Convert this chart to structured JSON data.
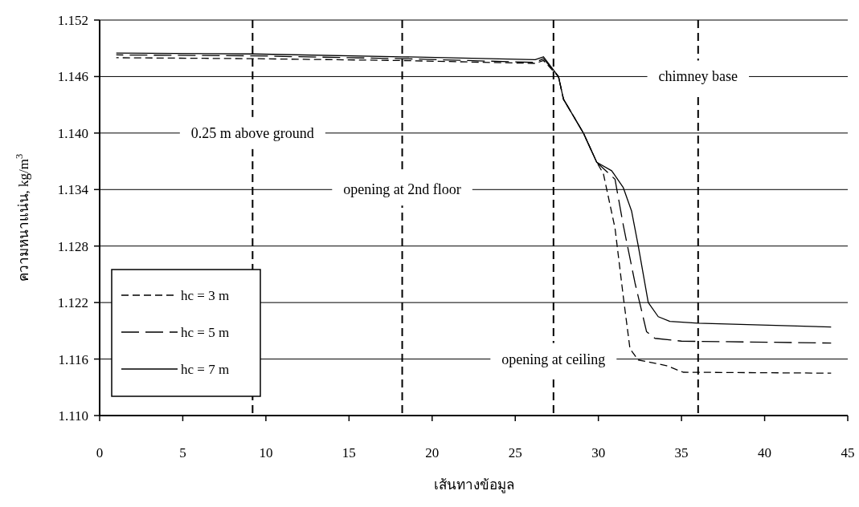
{
  "chart_data": {
    "type": "line",
    "xlabel": "เส้นทางข้อมูล",
    "ylabel": "ความหนาแน่น, kg/m$^{3}$",
    "xlim": [
      0,
      45
    ],
    "xticks": [
      0,
      5,
      10,
      15,
      20,
      25,
      30,
      35,
      40,
      45
    ],
    "ylim": [
      1.11,
      1.152
    ],
    "yticks": [
      {
        "value": 1.11,
        "label": "1.110"
      },
      {
        "value": 1.116,
        "label": "1.116"
      },
      {
        "value": 1.122,
        "label": "1.122"
      },
      {
        "value": 1.128,
        "label": "1.128"
      },
      {
        "value": 1.134,
        "label": "1.134"
      },
      {
        "value": 1.14,
        "label": "1.140"
      },
      {
        "value": 1.146,
        "label": "1.146"
      },
      {
        "value": 1.152,
        "label": "1.152"
      }
    ],
    "grid": "y",
    "legend": "bottom left",
    "series": [
      {
        "name": "hc = 3 m",
        "color": "#000000",
        "line_style": "dashed",
        "x": [
          1,
          9.2,
          18.2,
          26.2,
          26.7,
          27.6,
          27.9,
          29.1,
          29.9,
          30.3,
          31.0,
          31.5,
          31.9,
          32.4,
          34.1,
          35.1,
          44
        ],
        "values": [
          1.148,
          1.1479,
          1.1477,
          1.1474,
          1.1477,
          1.146,
          1.1436,
          1.14,
          1.1369,
          1.1357,
          1.1299,
          1.1226,
          1.1171,
          1.1159,
          1.1153,
          1.1146,
          1.1145
        ]
      },
      {
        "name": "hc = 5 m",
        "color": "#000000",
        "line_style": "dashed",
        "x": [
          1,
          9.2,
          18.2,
          26.2,
          26.7,
          27.6,
          27.9,
          29.1,
          29.9,
          31.0,
          31.5,
          32.2,
          32.9,
          33.4,
          35.0,
          44
        ],
        "values": [
          1.1483,
          1.1482,
          1.1479,
          1.1475,
          1.1479,
          1.146,
          1.1436,
          1.14,
          1.1369,
          1.1351,
          1.1302,
          1.1241,
          1.1189,
          1.1182,
          1.1179,
          1.1177
        ]
      },
      {
        "name": "hc = 7 m",
        "color": "#000000",
        "line_style": "solid",
        "x": [
          1,
          9.2,
          18.2,
          26.2,
          26.7,
          27.6,
          27.9,
          29.1,
          29.9,
          30.8,
          31.5,
          32.0,
          32.4,
          33.0,
          33.6,
          34.3,
          36.0,
          44
        ],
        "values": [
          1.1485,
          1.1484,
          1.1481,
          1.1478,
          1.1481,
          1.146,
          1.1436,
          1.14,
          1.1369,
          1.136,
          1.1342,
          1.1317,
          1.128,
          1.122,
          1.1205,
          1.12,
          1.1198,
          1.1194
        ]
      }
    ],
    "ref_lines": [
      {
        "axis": "x",
        "value": 9.2,
        "line_style": "dashed"
      },
      {
        "axis": "x",
        "value": 18.2,
        "line_style": "dashed"
      },
      {
        "axis": "x",
        "value": 27.3,
        "line_style": "dashed"
      },
      {
        "axis": "x",
        "value": 36.0,
        "line_style": "dashed"
      }
    ],
    "annotations": [
      {
        "text": "0.25 m above ground",
        "x": 9.2,
        "y": 1.14
      },
      {
        "text": "opening at 2nd floor",
        "x": 18.2,
        "y": 1.134
      },
      {
        "text": "opening at ceiling",
        "x": 27.3,
        "y": 1.116
      },
      {
        "text": "chimney base",
        "x": 36.0,
        "y": 1.146
      }
    ]
  }
}
